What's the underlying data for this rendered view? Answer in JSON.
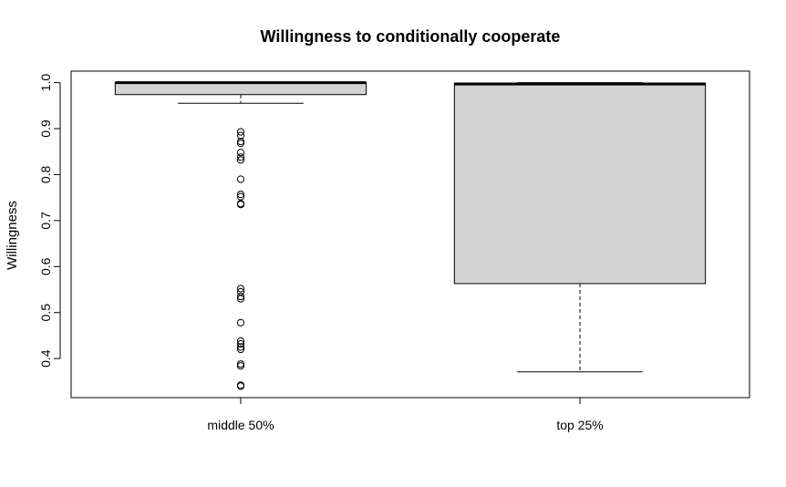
{
  "chart_data": {
    "type": "box",
    "title": "Willingness to conditionally cooperate",
    "xlabel": "",
    "ylabel": "Willingness",
    "ylim": [
      0.315,
      1.025
    ],
    "y_ticks": [
      "0.4",
      "0.5",
      "0.6",
      "0.7",
      "0.8",
      "0.9",
      "1.0"
    ],
    "categories": [
      "middle 50%",
      "top 25%"
    ],
    "boxes": [
      {
        "category": "middle 50%",
        "lower_whisker": 0.955,
        "q1": 0.974,
        "median": 1.0,
        "q3": 1.0,
        "upper_whisker": 1.0,
        "outliers": [
          0.893,
          0.885,
          0.872,
          0.868,
          0.848,
          0.838,
          0.832,
          0.79,
          0.757,
          0.752,
          0.737,
          0.735,
          0.552,
          0.545,
          0.535,
          0.53,
          0.478,
          0.438,
          0.432,
          0.425,
          0.42,
          0.388,
          0.384,
          0.342,
          0.34
        ]
      },
      {
        "category": "top 25%",
        "lower_whisker": 0.371,
        "q1": 0.563,
        "median": 0.997,
        "q3": 0.999,
        "upper_whisker": 1.0,
        "outliers": []
      }
    ],
    "box_fill": "#d3d3d3",
    "grid": false,
    "legend": "none"
  }
}
